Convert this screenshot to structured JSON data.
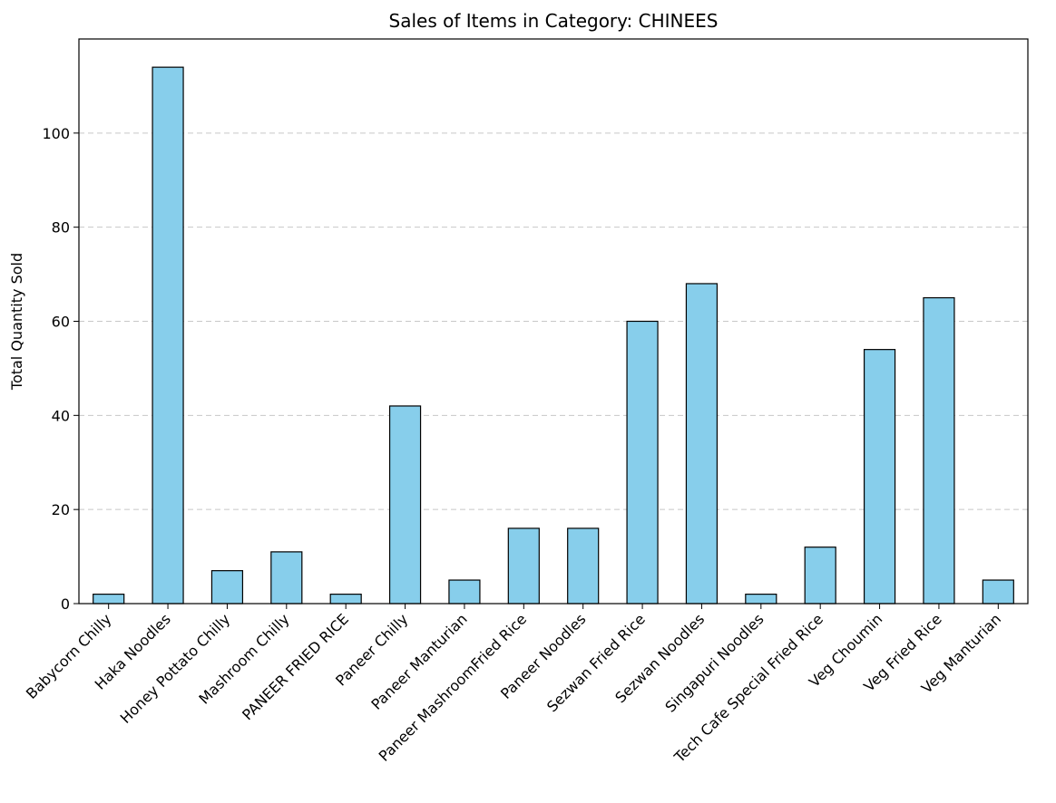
{
  "chart_data": {
    "type": "bar",
    "title": "Sales of Items in Category: CHINEES",
    "xlabel": "",
    "ylabel": "Total Quantity Sold",
    "categories": [
      "Babycorn Chilly",
      "Haka Noodles",
      "Honey Pottato Chilly",
      "Mashroom Chilly",
      "PANEER FRIED RICE",
      "Paneer Chilly",
      "Paneer Manturian",
      "Paneer MashroomFried Rice",
      "Paneer Noodles",
      "Sezwan Fried Rice",
      "Sezwan Noodles",
      "Singapuri Noodles",
      "Tech Cafe Special Fried Rice",
      "Veg Choumin",
      "Veg Fried Rice",
      "Veg Manturian"
    ],
    "values": [
      2,
      114,
      7,
      11,
      2,
      42,
      5,
      16,
      16,
      60,
      68,
      2,
      12,
      54,
      65,
      5
    ],
    "ylim": [
      0,
      120
    ],
    "yticks": [
      0,
      20,
      40,
      60,
      80,
      100
    ],
    "ytick_labels": [
      "0",
      "20",
      "40",
      "60",
      "80",
      "100"
    ],
    "grid": "y-dashed",
    "legend": "none",
    "bar_color": "#87ceeb",
    "edge_color": "#000000",
    "grid_color": "#c8c8c8"
  }
}
